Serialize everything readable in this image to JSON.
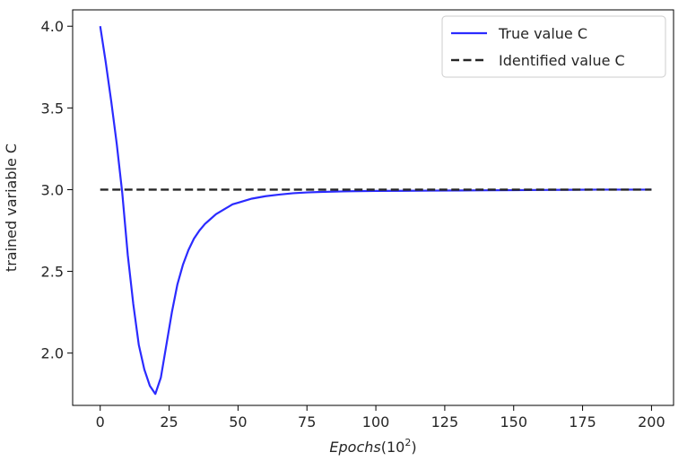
{
  "chart_data": {
    "type": "line",
    "title": "",
    "xlabel": {
      "italic": "Epochs",
      "rest": "(10",
      "sup": "2",
      "close": ")"
    },
    "ylabel": "trained variable C",
    "xlim": [
      -10,
      208
    ],
    "ylim": [
      1.68,
      4.1
    ],
    "xticks": [
      0,
      25,
      50,
      75,
      100,
      125,
      150,
      175,
      200
    ],
    "xtick_labels": [
      "0",
      "25",
      "50",
      "75",
      "100",
      "125",
      "150",
      "175",
      "200"
    ],
    "yticks": [
      2.0,
      2.5,
      3.0,
      3.5,
      4.0
    ],
    "ytick_labels": [
      "2.0",
      "2.5",
      "3.0",
      "3.5",
      "4.0"
    ],
    "grid": false,
    "legend_position": "upper right",
    "series": [
      {
        "name": "True value C",
        "style": "solid",
        "color": "#2b2bff",
        "x": [
          0,
          2,
          4,
          6,
          8,
          10,
          12,
          14,
          16,
          18,
          20,
          22,
          24,
          26,
          28,
          30,
          32,
          34,
          36,
          38,
          40,
          42,
          45,
          48,
          50,
          55,
          60,
          65,
          70,
          75,
          80,
          90,
          100,
          110,
          120,
          130,
          140,
          150,
          160,
          170,
          180,
          190,
          200
        ],
        "y": [
          4.0,
          3.78,
          3.54,
          3.28,
          2.98,
          2.6,
          2.3,
          2.05,
          1.9,
          1.8,
          1.75,
          1.85,
          2.05,
          2.25,
          2.42,
          2.54,
          2.63,
          2.7,
          2.75,
          2.79,
          2.82,
          2.85,
          2.88,
          2.91,
          2.92,
          2.945,
          2.96,
          2.97,
          2.978,
          2.983,
          2.986,
          2.99,
          2.992,
          2.993,
          2.994,
          2.995,
          2.996,
          2.997,
          2.998,
          2.999,
          3.0,
          3.0,
          3.0
        ]
      },
      {
        "name": "Identified value C",
        "style": "dashed",
        "color": "#262626",
        "x": [
          0,
          200
        ],
        "y": [
          3.0,
          3.0
        ]
      }
    ]
  }
}
